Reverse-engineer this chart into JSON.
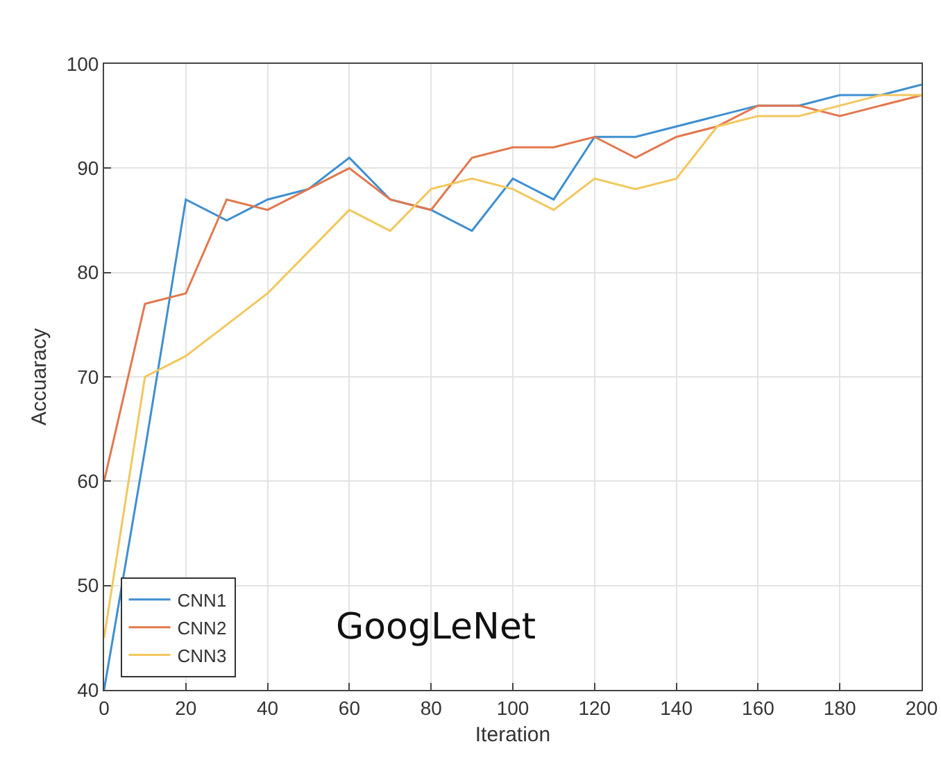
{
  "chart_data": {
    "type": "line",
    "xlabel": "Iteration",
    "ylabel": "Accuaracy",
    "annotations": [
      "GoogLeNet"
    ],
    "x": [
      0,
      10,
      20,
      30,
      40,
      50,
      60,
      70,
      80,
      90,
      100,
      110,
      120,
      130,
      140,
      150,
      160,
      170,
      180,
      190,
      200
    ],
    "series": [
      {
        "name": "CNN1",
        "color": "#3d8fd1",
        "values": [
          40,
          63,
          87,
          85,
          87,
          88,
          91,
          87,
          86,
          84,
          89,
          87,
          93,
          93,
          94,
          95,
          96,
          96,
          97,
          97,
          98
        ]
      },
      {
        "name": "CNN2",
        "color": "#e2774d",
        "values": [
          60,
          77,
          78,
          87,
          86,
          88,
          90,
          87,
          86,
          91,
          92,
          92,
          93,
          91,
          93,
          94,
          96,
          96,
          95,
          96,
          97
        ]
      },
      {
        "name": "CNN3",
        "color": "#f2c75c",
        "values": [
          45,
          70,
          72,
          75,
          78,
          82,
          86,
          84,
          88,
          89,
          88,
          86,
          89,
          88,
          89,
          94,
          95,
          95,
          96,
          97,
          97
        ]
      }
    ],
    "xlim": [
      0,
      200
    ],
    "xticks": [
      0,
      20,
      40,
      60,
      80,
      100,
      120,
      140,
      160,
      180,
      200
    ],
    "ylim": [
      40,
      100
    ],
    "yticks": [
      40,
      50,
      60,
      70,
      80,
      90,
      100
    ],
    "grid": true,
    "legend": "bottom left",
    "marker": "none",
    "line_style": "solid"
  }
}
